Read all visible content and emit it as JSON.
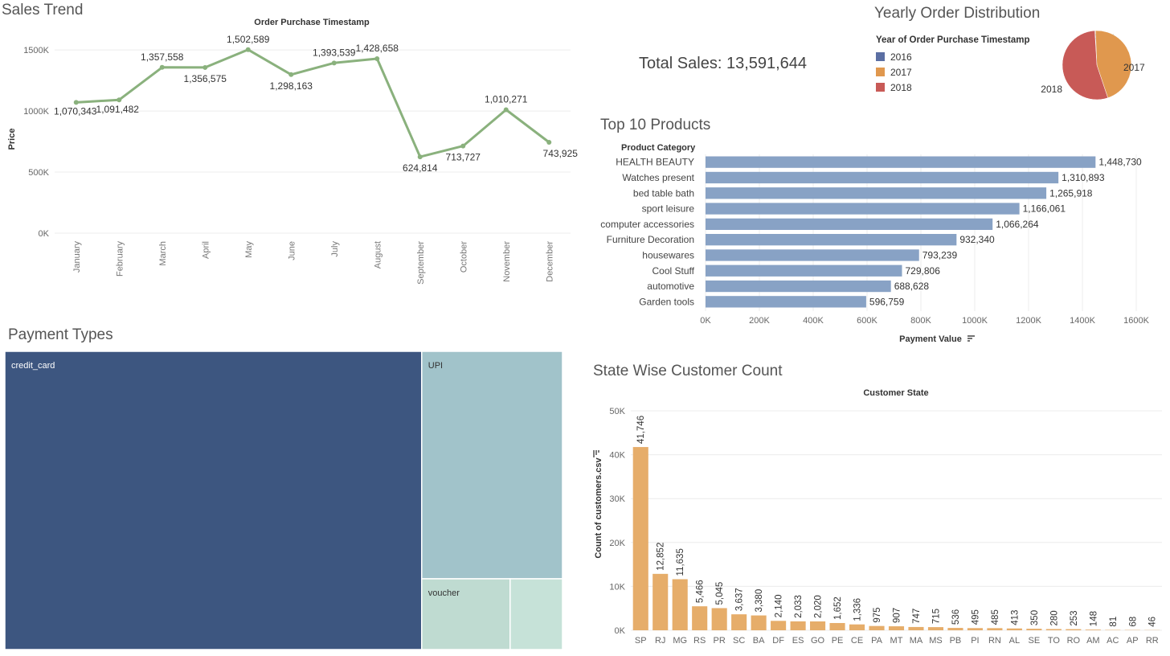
{
  "chart_data": [
    {
      "type": "line",
      "title": "Sales Trend",
      "subtitle": "Order Purchase Timestamp",
      "xlabel": "",
      "ylabel": "Price",
      "categories": [
        "January",
        "February",
        "March",
        "April",
        "May",
        "June",
        "July",
        "August",
        "September",
        "October",
        "November",
        "December"
      ],
      "values": [
        1070343,
        1091482,
        1357558,
        1356575,
        1502589,
        1298163,
        1393539,
        1428658,
        624814,
        713727,
        1010271,
        743925
      ],
      "labels": [
        "1,070,343",
        "1,091,482",
        "1,357,558",
        "1,356,575",
        "1,502,589",
        "1,298,163",
        "1,393,539",
        "1,428,658",
        "624,814",
        "713,727",
        "1,010,271",
        "743,925"
      ],
      "yticks": [
        0,
        500000,
        1000000,
        1500000
      ],
      "ytick_labels": [
        "0K",
        "500K",
        "1000K",
        "1500K"
      ],
      "ylim": [
        0,
        1580000
      ],
      "color": "#8ab17d",
      "grid": true
    },
    {
      "type": "pie",
      "title": "Yearly Order Distribution",
      "legend_title": "Year of Order Purchase Timestamp",
      "legend_position": "left",
      "categories": [
        "2016",
        "2017",
        "2018"
      ],
      "values": [
        0.3,
        45.5,
        54.2
      ],
      "colors": [
        "#5b6fa3",
        "#e0984e",
        "#c85a57"
      ]
    },
    {
      "type": "bar",
      "orientation": "horizontal",
      "title": "Top 10 Products",
      "ylabel": "Product Category",
      "xlabel": "Payment Value",
      "categories": [
        "HEALTH BEAUTY",
        "Watches present",
        "bed table bath",
        "sport leisure",
        "computer accessories",
        "Furniture Decoration",
        "housewares",
        "Cool Stuff",
        "automotive",
        "Garden tools"
      ],
      "values": [
        1448730,
        1310893,
        1265918,
        1166061,
        1066264,
        932340,
        793239,
        729806,
        688628,
        596759
      ],
      "labels": [
        "1,448,730",
        "1,310,893",
        "1,265,918",
        "1,166,061",
        "1,066,264",
        "932,340",
        "793,239",
        "729,806",
        "688,628",
        "596,759"
      ],
      "xticks": [
        0,
        200000,
        400000,
        600000,
        800000,
        1000000,
        1200000,
        1400000,
        1600000
      ],
      "xtick_labels": [
        "0K",
        "200K",
        "400K",
        "600K",
        "800K",
        "1000K",
        "1200K",
        "1400K",
        "1600K"
      ],
      "xlim": [
        0,
        1600000
      ],
      "color": "#88a2c5",
      "grid": true
    },
    {
      "type": "treemap",
      "title": "Payment Types",
      "categories": [
        "credit_card",
        "UPI",
        "voucher",
        ""
      ],
      "values": [
        76795,
        19784,
        3866,
        2290
      ],
      "colors": [
        "#3d5680",
        "#a1c3ca",
        "#bfdbd1",
        "#c6e2d8"
      ]
    },
    {
      "type": "bar",
      "title": "State Wise Customer Count",
      "subtitle": "Customer State",
      "ylabel": "Count of customers.csv",
      "xlabel": "",
      "categories": [
        "SP",
        "RJ",
        "MG",
        "RS",
        "PR",
        "SC",
        "BA",
        "DF",
        "ES",
        "GO",
        "PE",
        "CE",
        "PA",
        "MT",
        "MA",
        "MS",
        "PB",
        "PI",
        "RN",
        "AL",
        "SE",
        "TO",
        "RO",
        "AM",
        "AC",
        "AP",
        "RR"
      ],
      "values": [
        41746,
        12852,
        11635,
        5466,
        5045,
        3637,
        3380,
        2140,
        2033,
        2020,
        1652,
        1336,
        975,
        907,
        747,
        715,
        536,
        495,
        485,
        413,
        350,
        280,
        253,
        148,
        81,
        68,
        46
      ],
      "labels": [
        "41,746",
        "12,852",
        "11,635",
        "5,466",
        "5,045",
        "3,637",
        "3,380",
        "2,140",
        "2,033",
        "2,020",
        "1,652",
        "1,336",
        "975",
        "907",
        "747",
        "715",
        "536",
        "495",
        "485",
        "413",
        "350",
        "280",
        "253",
        "148",
        "81",
        "68",
        "46"
      ],
      "yticks": [
        0,
        10000,
        20000,
        30000,
        40000,
        50000
      ],
      "ytick_labels": [
        "0K",
        "10K",
        "20K",
        "30K",
        "40K",
        "50K"
      ],
      "ylim": [
        0,
        50000
      ],
      "color": "#e6ad6a",
      "grid": true
    }
  ],
  "total_sales": "Total Sales: 13,591,644"
}
